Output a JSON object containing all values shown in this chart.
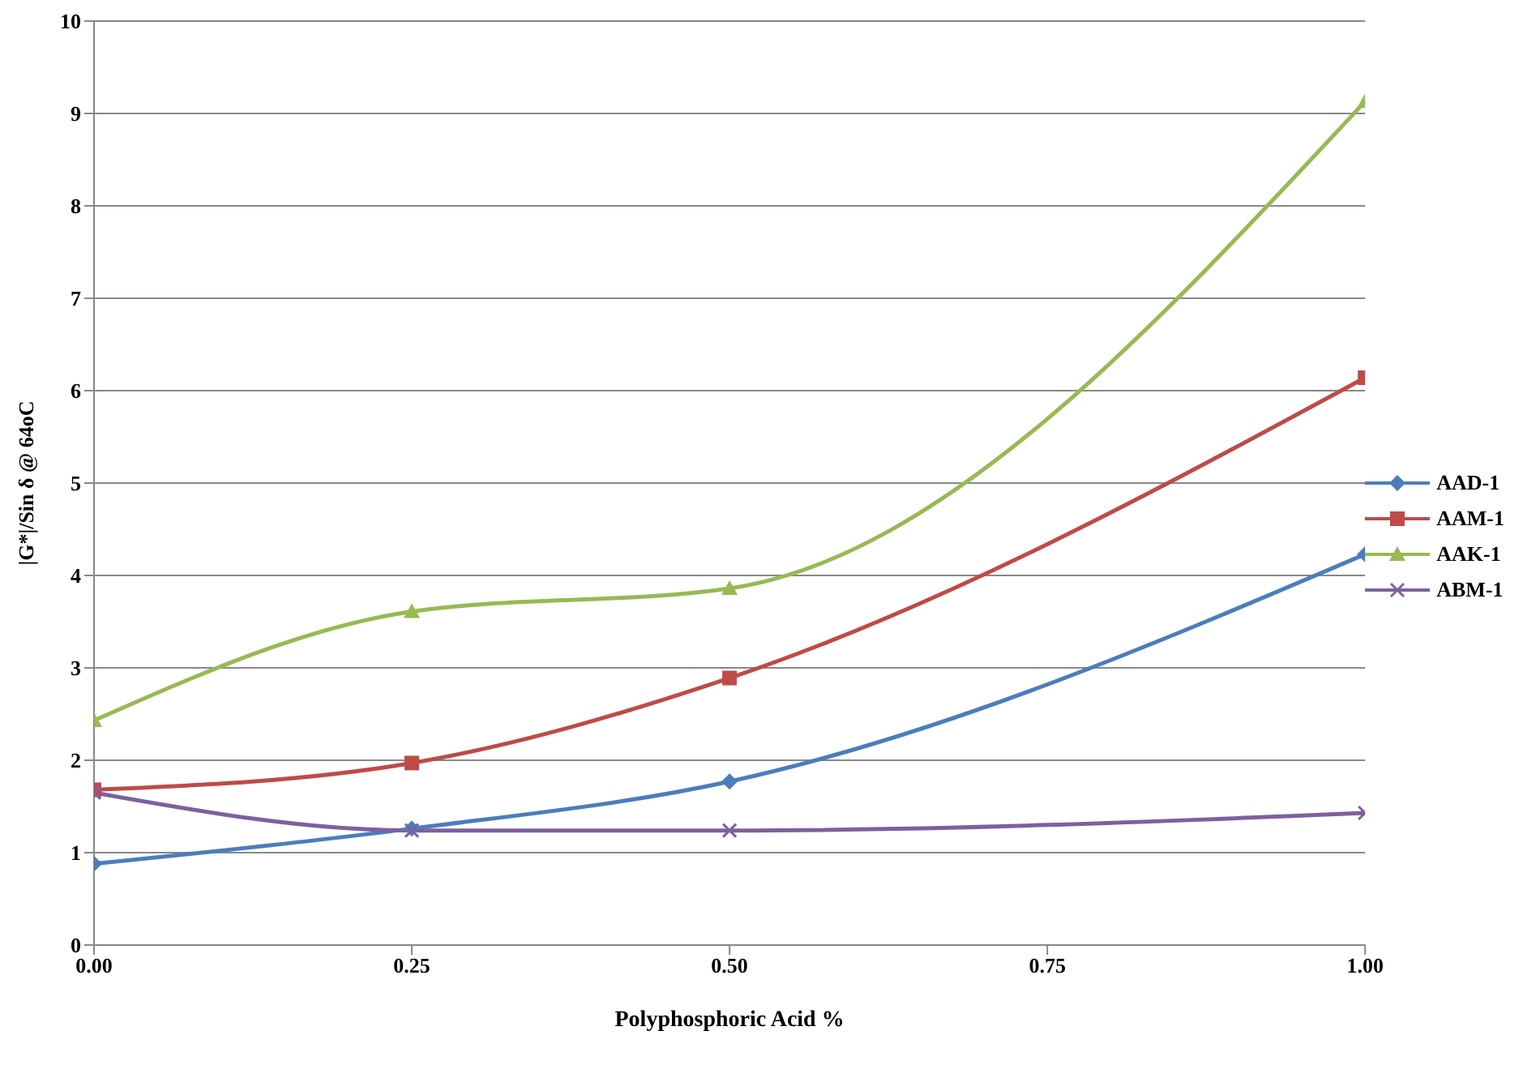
{
  "chart_data": {
    "type": "line",
    "xlabel": "Polyphosphoric Acid %",
    "ylabel": "|G*|/Sin δ @ 64oC",
    "x": [
      0,
      0.25,
      0.5,
      1
    ],
    "series": [
      {
        "name": "AAD-1",
        "color": "#4a7ebb",
        "marker": "diamond",
        "values": [
          0.88,
          1.26,
          1.77,
          4.23
        ]
      },
      {
        "name": "AAM-1",
        "color": "#be4b48",
        "marker": "square",
        "values": [
          1.68,
          1.97,
          2.89,
          6.14
        ]
      },
      {
        "name": "AAK-1",
        "color": "#98b954",
        "marker": "triangle",
        "values": [
          2.43,
          3.61,
          3.86,
          9.13
        ]
      },
      {
        "name": "ABM-1",
        "color": "#7d60a0",
        "marker": "cross",
        "values": [
          1.65,
          1.24,
          1.24,
          1.43
        ]
      }
    ],
    "xlim": [
      0,
      1
    ],
    "xticks": [
      {
        "value": 0,
        "label": "0.00"
      },
      {
        "value": 0.25,
        "label": "0.25"
      },
      {
        "value": 0.5,
        "label": "0.50"
      },
      {
        "value": 0.75,
        "label": "0.75"
      },
      {
        "value": 1,
        "label": "1.00"
      }
    ],
    "ylim": [
      0,
      10
    ],
    "yticks": [
      0,
      1,
      2,
      3,
      4,
      5,
      6,
      7,
      8,
      9,
      10
    ],
    "grid": "y",
    "legend": "right",
    "line_style": "solid"
  }
}
